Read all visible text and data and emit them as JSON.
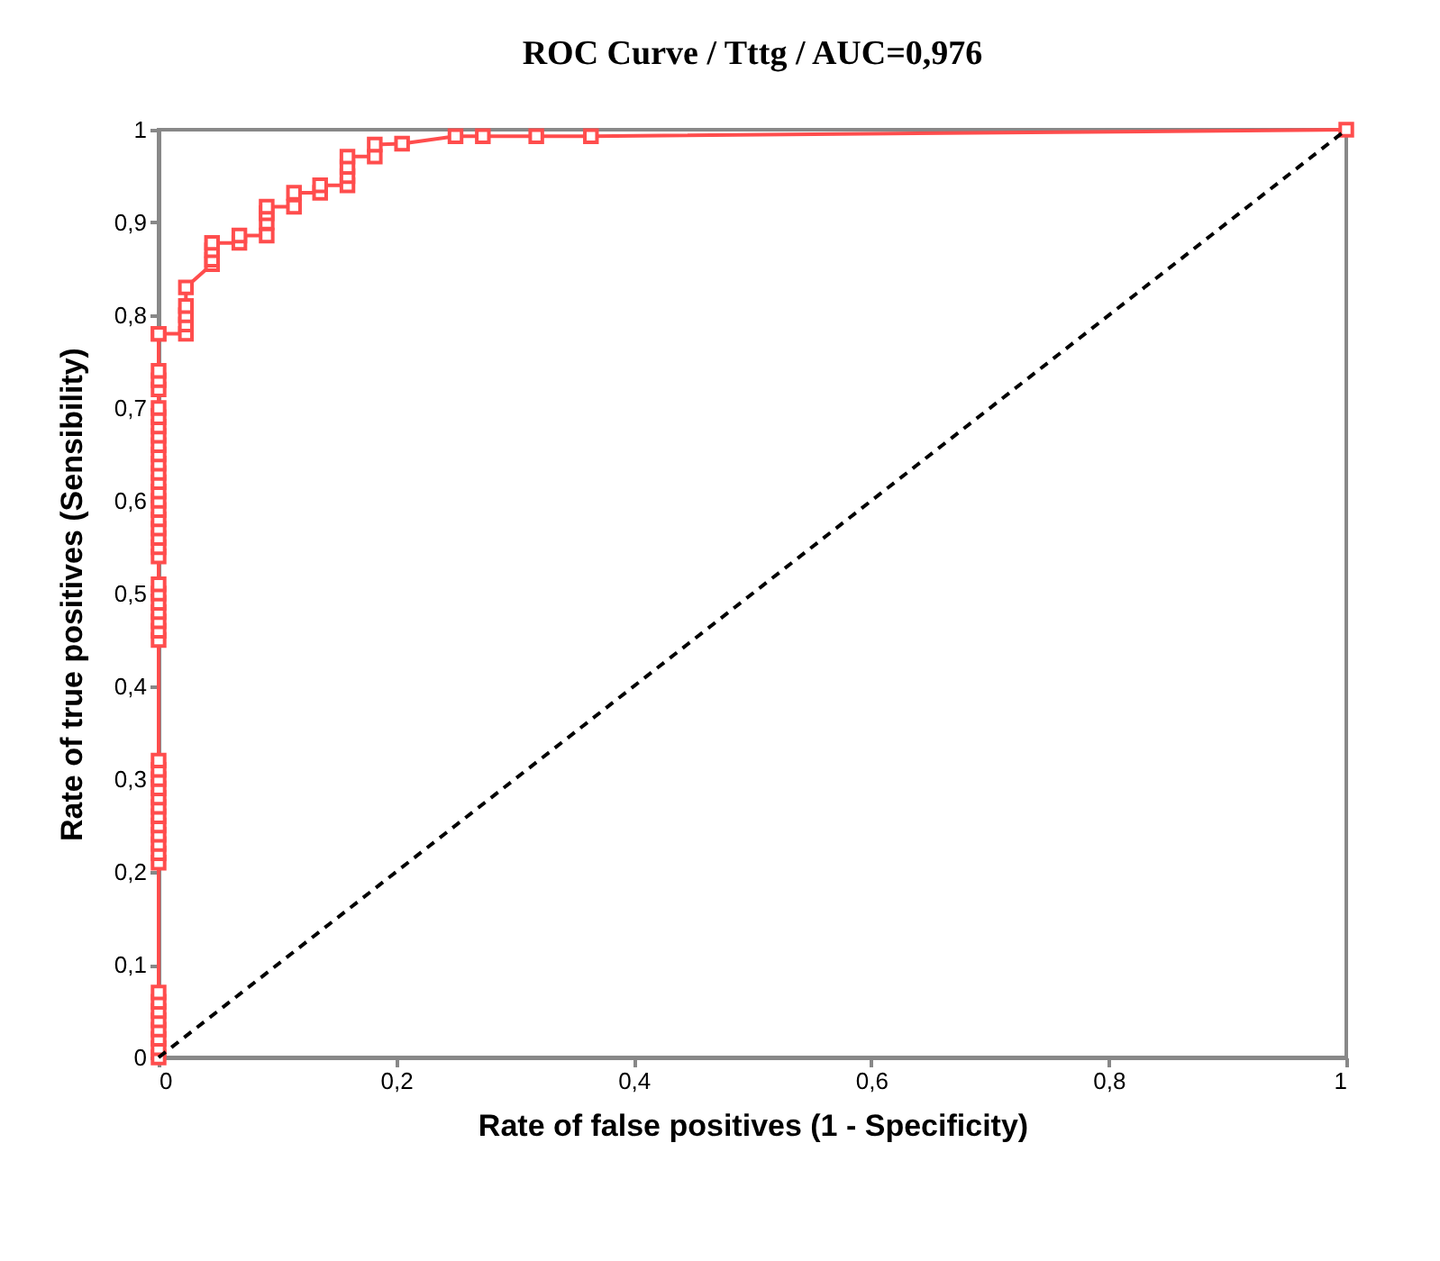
{
  "chart_data": {
    "type": "line",
    "title": "ROC Curve / Tttg / AUC=0,976",
    "xlabel": "Rate of false positives (1 - Specificity)",
    "ylabel": "Rate of true positives (Sensibility)",
    "xlim": [
      0,
      1
    ],
    "ylim": [
      0,
      1
    ],
    "xticks": [
      {
        "value": 0,
        "label": "0"
      },
      {
        "value": 0.2,
        "label": "0,2"
      },
      {
        "value": 0.4,
        "label": "0,4"
      },
      {
        "value": 0.6,
        "label": "0,6"
      },
      {
        "value": 0.8,
        "label": "0,8"
      },
      {
        "value": 1,
        "label": "1"
      }
    ],
    "yticks": [
      {
        "value": 0,
        "label": "0"
      },
      {
        "value": 0.1,
        "label": "0,1"
      },
      {
        "value": 0.2,
        "label": "0,2"
      },
      {
        "value": 0.3,
        "label": "0,3"
      },
      {
        "value": 0.4,
        "label": "0,4"
      },
      {
        "value": 0.5,
        "label": "0,5"
      },
      {
        "value": 0.6,
        "label": "0,6"
      },
      {
        "value": 0.7,
        "label": "0,7"
      },
      {
        "value": 0.8,
        "label": "0,8"
      },
      {
        "value": 0.9,
        "label": "0,9"
      },
      {
        "value": 1,
        "label": "1"
      }
    ],
    "grid": false,
    "series": [
      {
        "color": "#ff4d4d",
        "marker": "square",
        "line_style": "solid",
        "x": [
          0,
          0,
          0,
          0,
          0,
          0,
          0,
          0,
          0,
          0,
          0,
          0,
          0,
          0,
          0,
          0,
          0,
          0,
          0,
          0,
          0,
          0,
          0,
          0,
          0,
          0,
          0,
          0,
          0,
          0,
          0,
          0,
          0,
          0,
          0,
          0,
          0,
          0,
          0,
          0,
          0,
          0,
          0,
          0,
          0,
          0,
          0,
          0,
          0,
          0.023,
          0.023,
          0.023,
          0.023,
          0.023,
          0.045,
          0.045,
          0.045,
          0.045,
          0.068,
          0.068,
          0.091,
          0.091,
          0.091,
          0.091,
          0.114,
          0.114,
          0.136,
          0.136,
          0.159,
          0.159,
          0.159,
          0.159,
          0.182,
          0.182,
          0.205,
          0.25,
          0.273,
          0.318,
          0.364,
          1
        ],
        "values": [
          0,
          0.01,
          0.02,
          0.03,
          0.04,
          0.05,
          0.06,
          0.07,
          0.21,
          0.22,
          0.23,
          0.24,
          0.25,
          0.26,
          0.27,
          0.28,
          0.29,
          0.3,
          0.31,
          0.32,
          0.45,
          0.46,
          0.47,
          0.48,
          0.49,
          0.5,
          0.51,
          0.54,
          0.55,
          0.56,
          0.57,
          0.58,
          0.59,
          0.6,
          0.61,
          0.62,
          0.63,
          0.64,
          0.65,
          0.66,
          0.67,
          0.68,
          0.69,
          0.7,
          0.72,
          0.73,
          0.74,
          0.78,
          0.78,
          0.78,
          0.79,
          0.8,
          0.81,
          0.83,
          0.855,
          0.86,
          0.87,
          0.878,
          0.878,
          0.886,
          0.886,
          0.9,
          0.91,
          0.917,
          0.917,
          0.932,
          0.932,
          0.94,
          0.94,
          0.95,
          0.96,
          0.971,
          0.971,
          0.984,
          0.985,
          0.993,
          0.993,
          0.993,
          0.993,
          1
        ]
      },
      {
        "color": "#000000",
        "marker": "none",
        "line_style": "dashed",
        "x": [
          0,
          1
        ],
        "values": [
          0,
          1
        ]
      }
    ]
  }
}
